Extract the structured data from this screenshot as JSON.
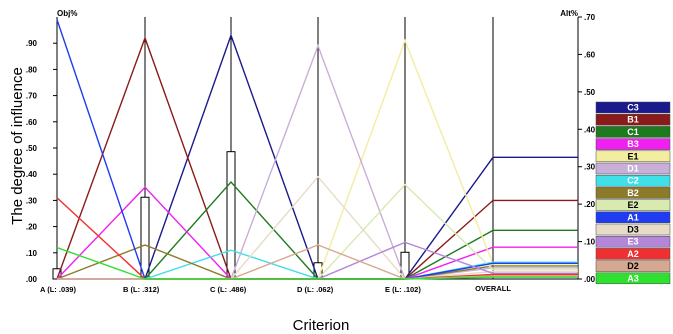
{
  "chart_data": {
    "type": "line",
    "xlabel": "Criterion",
    "ylabel": "The degree of influence",
    "left_axis_label": "Obj%",
    "right_axis_label": "Alt%",
    "left_ylim": [
      0,
      1.0
    ],
    "right_ylim": [
      0,
      0.7
    ],
    "left_ticks": [
      ".00",
      ".10",
      ".20",
      ".30",
      ".40",
      ".50",
      ".60",
      ".70",
      ".80",
      ".90"
    ],
    "right_ticks": [
      ".00",
      ".10",
      ".20",
      ".30",
      ".40",
      ".50",
      ".60",
      ".70"
    ],
    "criteria": [
      {
        "label": "A (L: .039)",
        "weight": 0.039
      },
      {
        "label": "B (L: .312)",
        "weight": 0.312
      },
      {
        "label": "C (L: .486)",
        "weight": 0.486
      },
      {
        "label": "D (L: .062)",
        "weight": 0.062
      },
      {
        "label": "E (L: .102)",
        "weight": 0.102
      }
    ],
    "overall_label": "OVERALL",
    "grid": false,
    "legend_position": "right",
    "series": [
      {
        "name": "C3",
        "color": "#1a1a8c",
        "values": [
          0,
          0,
          0.93,
          0,
          0
        ],
        "overall": 0.325
      },
      {
        "name": "B1",
        "color": "#8b1a1a",
        "values": [
          0,
          0.92,
          0,
          0,
          0
        ],
        "overall": 0.21
      },
      {
        "name": "C1",
        "color": "#1f7a1f",
        "values": [
          0,
          0,
          0.37,
          0,
          0
        ],
        "overall": 0.13
      },
      {
        "name": "B3",
        "color": "#f020f0",
        "values": [
          0,
          0.35,
          0,
          0,
          0
        ],
        "overall": 0.085
      },
      {
        "name": "E1",
        "color": "#f3eda0",
        "values": [
          0,
          0,
          0,
          0,
          0.91
        ],
        "overall": 0.04
      },
      {
        "name": "D1",
        "color": "#c9afd8",
        "values": [
          0,
          0,
          0,
          0.89,
          0
        ],
        "overall": 0.03
      },
      {
        "name": "C2",
        "color": "#40e0e8",
        "values": [
          0,
          0,
          0.11,
          0,
          0
        ],
        "overall": 0.045
      },
      {
        "name": "B2",
        "color": "#8b7a28",
        "values": [
          0,
          0.13,
          0,
          0,
          0
        ],
        "overall": 0.035
      },
      {
        "name": "E2",
        "color": "#d8eab0",
        "values": [
          0,
          0,
          0,
          0,
          0.36
        ],
        "overall": 0.025
      },
      {
        "name": "A1",
        "color": "#1f3cf0",
        "values": [
          0.99,
          0,
          0,
          0,
          0
        ],
        "overall": 0.042
      },
      {
        "name": "D3",
        "color": "#e6dcc8",
        "values": [
          0,
          0,
          0,
          0.39,
          0
        ],
        "overall": 0.02
      },
      {
        "name": "E3",
        "color": "#b486d8",
        "values": [
          0,
          0,
          0,
          0,
          0.14
        ],
        "overall": 0.015
      },
      {
        "name": "A2",
        "color": "#f03030",
        "values": [
          0.31,
          0,
          0,
          0,
          0
        ],
        "overall": 0.012
      },
      {
        "name": "D2",
        "color": "#d6a890",
        "values": [
          0,
          0,
          0,
          0.13,
          0
        ],
        "overall": 0.008
      },
      {
        "name": "A3",
        "color": "#30e030",
        "values": [
          0.12,
          0,
          0,
          0,
          0
        ],
        "overall": 0.005
      }
    ]
  }
}
